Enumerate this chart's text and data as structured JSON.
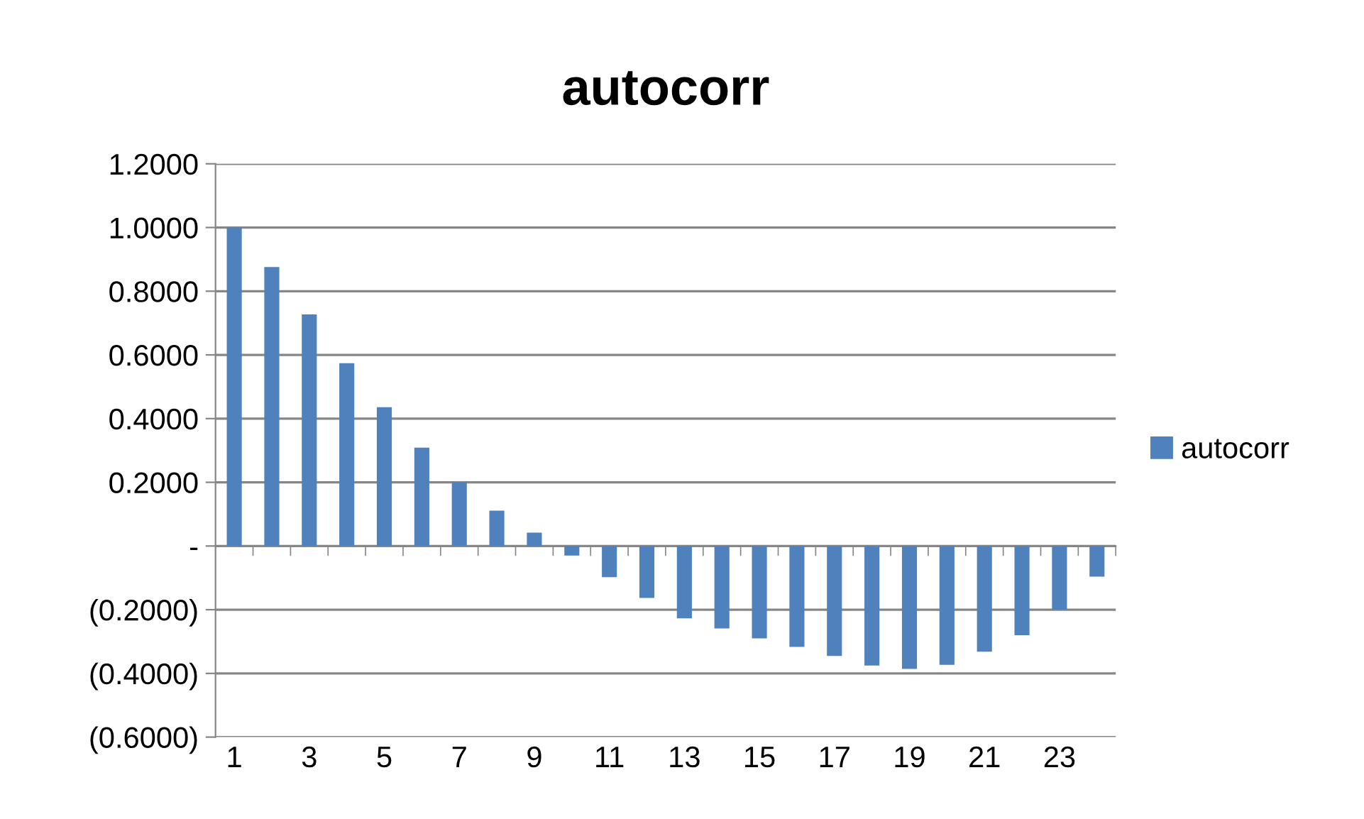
{
  "chart_data": {
    "type": "bar",
    "title": "autocorr",
    "categories": [
      "1",
      null,
      "3",
      null,
      "5",
      null,
      "7",
      null,
      "9",
      null,
      "11",
      null,
      "13",
      null,
      "15",
      null,
      "17",
      null,
      "19",
      null,
      "21",
      null,
      "23",
      null
    ],
    "series": [
      {
        "name": "autocorr",
        "color": "#4f81bd",
        "values": [
          1.0,
          0.876,
          0.727,
          0.574,
          0.436,
          0.309,
          0.201,
          0.111,
          0.042,
          -0.03,
          -0.098,
          -0.163,
          -0.227,
          -0.259,
          -0.29,
          -0.317,
          -0.345,
          -0.375,
          -0.386,
          -0.373,
          -0.332,
          -0.28,
          -0.2,
          -0.096
        ]
      }
    ],
    "ylim": [
      -0.6,
      1.2
    ],
    "yticks": [
      {
        "value": -0.6,
        "label": "(0.6000)"
      },
      {
        "value": -0.4,
        "label": "(0.4000)"
      },
      {
        "value": -0.2,
        "label": "(0.2000)"
      },
      {
        "value": 0,
        "label": "-"
      },
      {
        "value": 0.2,
        "label": "0.2000"
      },
      {
        "value": 0.4,
        "label": "0.4000"
      },
      {
        "value": 0.6,
        "label": "0.6000"
      },
      {
        "value": 0.8,
        "label": "0.8000"
      },
      {
        "value": 1.0,
        "label": "1.0000"
      },
      {
        "value": 1.2,
        "label": "1.2000"
      }
    ],
    "grid": "y",
    "legend": "right"
  }
}
